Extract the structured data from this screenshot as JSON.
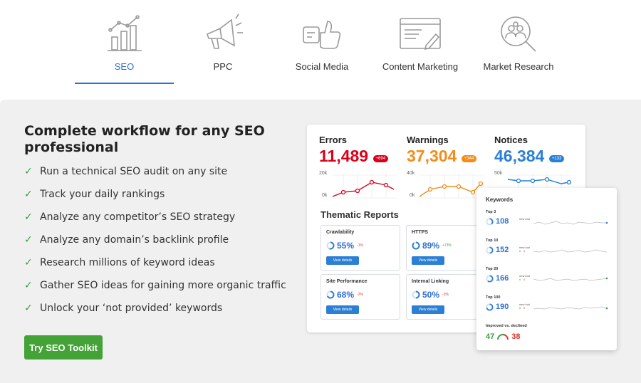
{
  "tabs": [
    {
      "label": "SEO",
      "icon": "bar-chart-icon",
      "active": true
    },
    {
      "label": "PPC",
      "icon": "megaphone-icon",
      "active": false
    },
    {
      "label": "Social Media",
      "icon": "thumbs-up-icon",
      "active": false
    },
    {
      "label": "Content Marketing",
      "icon": "document-pencil-icon",
      "active": false
    },
    {
      "label": "Market Research",
      "icon": "people-search-icon",
      "active": false
    }
  ],
  "panel": {
    "headline": "Complete workflow for any SEO professional",
    "features": [
      "Run a technical SEO audit on any site",
      "Track your daily rankings",
      "Analyze any competitor’s SEO strategy",
      "Analyze any domain’s backlink profile",
      "Research millions of keyword ideas",
      "Gather SEO ideas for gaining more organic traffic",
      "Unlock your ‘not provided’ keywords"
    ],
    "cta_label": "Try SEO Toolkit",
    "colors": {
      "accent": "#2f6fd0",
      "cta": "#44a336",
      "check": "#3aa141"
    }
  },
  "audit": {
    "metrics": [
      {
        "label": "Errors",
        "value": "11,489",
        "badge": "+694",
        "color": "#d9001b",
        "axis_top": "20k",
        "axis_bottom": "0k"
      },
      {
        "label": "Warnings",
        "value": "37,304",
        "badge": "+344",
        "color": "#f28c1a",
        "axis_top": "40k",
        "axis_bottom": "0k"
      },
      {
        "label": "Notices",
        "value": "46,384",
        "badge": "+133",
        "color": "#2b7fd4",
        "axis_top": "50k",
        "axis_bottom": ""
      }
    ],
    "thematic_title": "Thematic Reports",
    "reports": [
      {
        "label": "Crawlability",
        "value": "55%",
        "delta": "-1%",
        "delta_color": "#d9342b",
        "button": "View details",
        "fill": 0.55
      },
      {
        "label": "HTTPS",
        "value": "89%",
        "delta": "+73%",
        "delta_color": "#3aa141",
        "button": "View details",
        "fill": 0.89
      },
      {
        "label": "Site Performance",
        "value": "68%",
        "delta": "-2%",
        "delta_color": "#d9342b",
        "button": "View details",
        "fill": 0.68
      },
      {
        "label": "Internal Linking",
        "value": "50%",
        "delta": "-2%",
        "delta_color": "#d9342b",
        "button": "View details",
        "fill": 0.5
      }
    ]
  },
  "keywords": {
    "title": "Keywords",
    "rows": [
      {
        "label": "Top 3",
        "value": "108",
        "new": "new",
        "lost": "lost",
        "new_count": "",
        "lost_count": "",
        "fill": 0.4
      },
      {
        "label": "Top 10",
        "value": "152",
        "new": "new",
        "lost": "lost",
        "new_count": "6",
        "lost_count": "4",
        "fill": 0.5
      },
      {
        "label": "Top 20",
        "value": "166",
        "new": "new",
        "lost": "lost",
        "new_count": "6",
        "lost_count": "4",
        "fill": 0.6
      },
      {
        "label": "Top 100",
        "value": "190",
        "new": "new",
        "lost": "lost",
        "new_count": "6",
        "lost_count": "3",
        "fill": 0.7
      }
    ],
    "improved_label": "Improved vs. declined",
    "improved": "47",
    "declined": "38"
  }
}
